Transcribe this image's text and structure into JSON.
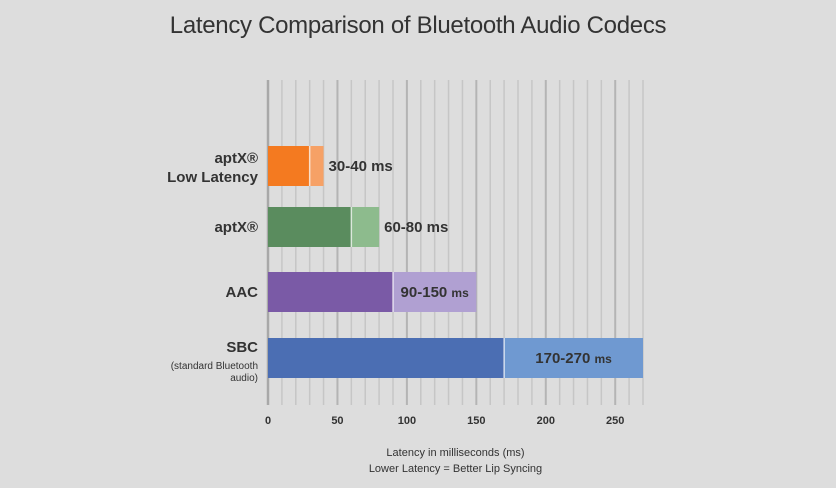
{
  "chart_data": {
    "type": "bar",
    "orientation": "horizontal",
    "stacked": true,
    "title": "Latency Comparison of Bluetooth Audio Codecs",
    "xlabel": "Latency in milliseconds (ms)",
    "xlabel_note": "Lower Latency = Better Lip Syncing",
    "ylabel": "",
    "xlim": [
      0,
      270
    ],
    "xticks": [
      0,
      50,
      100,
      150,
      200,
      250
    ],
    "grid": "vertical",
    "categories": [
      {
        "label": "aptX®",
        "label2": "Low Latency",
        "sublabel": [],
        "min": 30,
        "max": 40,
        "data_label": "30-40",
        "unit": "ms",
        "color_min": "#f47a20",
        "color_range": "#f6a166"
      },
      {
        "label": "aptX®",
        "label2": "",
        "sublabel": [],
        "min": 60,
        "max": 80,
        "data_label": "60-80",
        "unit": "ms",
        "color_min": "#5a8c5e",
        "color_range": "#8dbb8d"
      },
      {
        "label": "AAC",
        "label2": "",
        "sublabel": [],
        "min": 90,
        "max": 150,
        "data_label": "90-150",
        "unit": "ms",
        "color_min": "#7a5aa6",
        "color_range": "#b0a0d2"
      },
      {
        "label": "SBC",
        "label2": "",
        "sublabel": [
          "(standard Bluetooth",
          "audio)"
        ],
        "min": 170,
        "max": 270,
        "data_label": "170-270",
        "unit": "ms",
        "color_min": "#4b6eb3",
        "color_range": "#6f99d1"
      }
    ]
  }
}
